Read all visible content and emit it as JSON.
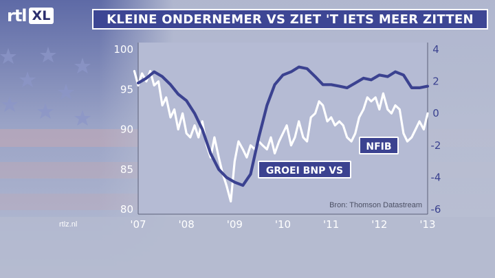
{
  "header": {
    "logo_text": "rtl",
    "logo_badge": "XL",
    "title": "KLEINE ONDERNEMER VS ZIET 'T IETS MEER ZITTEN"
  },
  "footer": {
    "site": "rtlz.nl"
  },
  "chart_data": {
    "type": "line",
    "source": "Bron: Thomson Datastream",
    "x_ticks": [
      "'07",
      "'08",
      "'09",
      "'10",
      "'11",
      "'12",
      "'13"
    ],
    "x_range": [
      2007,
      2013
    ],
    "y_left": {
      "ticks": [
        "100",
        "95",
        "90",
        "85",
        "80"
      ],
      "range": [
        80,
        100
      ]
    },
    "y_right": {
      "ticks": [
        "4",
        "2",
        "0",
        "-2",
        "-4",
        "-6"
      ],
      "range": [
        -6,
        4
      ]
    },
    "colors": {
      "nfib": "#ffffff",
      "bnp": "#3b4290",
      "label_bg": "#3b4290",
      "label_text": "#ffffff"
    },
    "series": [
      {
        "name": "NFIB",
        "axis": "left",
        "x": [
          2006.92,
          2007.0,
          2007.08,
          2007.17,
          2007.25,
          2007.33,
          2007.42,
          2007.5,
          2007.58,
          2007.67,
          2007.75,
          2007.83,
          2007.92,
          2008.0,
          2008.08,
          2008.17,
          2008.25,
          2008.33,
          2008.42,
          2008.5,
          2008.58,
          2008.67,
          2008.75,
          2008.83,
          2008.92,
          2009.0,
          2009.08,
          2009.17,
          2009.25,
          2009.33,
          2009.42,
          2009.5,
          2009.58,
          2009.67,
          2009.75,
          2009.83,
          2009.92,
          2010.0,
          2010.08,
          2010.17,
          2010.25,
          2010.33,
          2010.42,
          2010.5,
          2010.58,
          2010.67,
          2010.75,
          2010.83,
          2010.92,
          2011.0,
          2011.08,
          2011.17,
          2011.25,
          2011.33,
          2011.42,
          2011.5,
          2011.58,
          2011.67,
          2011.75,
          2011.83,
          2011.92,
          2012.0,
          2012.08,
          2012.17,
          2012.25,
          2012.33,
          2012.42,
          2012.5,
          2012.58,
          2012.67,
          2012.75,
          2012.83,
          2012.92,
          2013.0
        ],
        "values": [
          97.3,
          95.5,
          97.0,
          96.0,
          97.3,
          95.5,
          96.0,
          93.0,
          94.0,
          91.5,
          92.5,
          90.0,
          92.0,
          89.5,
          89.0,
          90.5,
          89.0,
          91.0,
          88.0,
          86.5,
          89.0,
          86.5,
          84.5,
          83.0,
          81.0,
          86.0,
          88.5,
          87.5,
          86.5,
          88.0,
          87.5,
          88.5,
          88.0,
          87.5,
          89.0,
          87.0,
          88.5,
          89.5,
          90.5,
          88.0,
          89.0,
          91.0,
          89.0,
          88.5,
          91.5,
          92.0,
          93.5,
          93.0,
          91.0,
          91.5,
          90.5,
          91.0,
          90.5,
          89.0,
          88.5,
          89.5,
          91.5,
          92.5,
          94.0,
          93.5,
          94.0,
          92.5,
          94.5,
          92.5,
          92.0,
          93.0,
          92.5,
          89.5,
          88.5,
          89.0,
          90.0,
          91.0,
          90.0,
          92.0
        ]
      },
      {
        "name": "GROEI BNP VS",
        "axis": "right",
        "x": [
          2007.0,
          2007.17,
          2007.33,
          2007.5,
          2007.67,
          2007.83,
          2008.0,
          2008.17,
          2008.33,
          2008.5,
          2008.67,
          2008.83,
          2009.0,
          2009.17,
          2009.33,
          2009.5,
          2009.67,
          2009.83,
          2010.0,
          2010.17,
          2010.33,
          2010.5,
          2010.67,
          2010.83,
          2011.0,
          2011.17,
          2011.33,
          2011.5,
          2011.67,
          2011.83,
          2012.0,
          2012.17,
          2012.33,
          2012.5,
          2012.67,
          2012.83,
          2013.0
        ],
        "values": [
          1.9,
          2.2,
          2.6,
          2.3,
          1.8,
          1.2,
          0.8,
          0.0,
          -1.0,
          -2.5,
          -3.5,
          -4.0,
          -4.3,
          -4.5,
          -3.8,
          -1.5,
          0.5,
          1.8,
          2.4,
          2.6,
          2.9,
          2.8,
          2.3,
          1.8,
          1.8,
          1.7,
          1.6,
          1.9,
          2.2,
          2.1,
          2.4,
          2.3,
          2.6,
          2.4,
          1.6,
          1.6,
          1.7
        ]
      }
    ]
  }
}
